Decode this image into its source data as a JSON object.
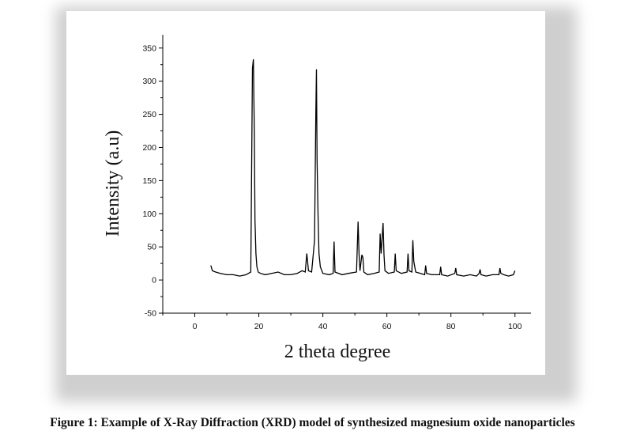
{
  "chart_data": {
    "type": "line",
    "title": "",
    "xlabel": "2 theta degree",
    "ylabel": "Intensity (a.u)",
    "xlim": [
      -10,
      105
    ],
    "ylim": [
      -50,
      370
    ],
    "x_ticks": [
      0,
      20,
      40,
      60,
      80,
      100
    ],
    "y_ticks": [
      -50,
      0,
      50,
      100,
      150,
      200,
      250,
      300,
      350
    ],
    "grid": false,
    "line_color": "#000000",
    "series": [
      {
        "x": [
          5,
          5.5,
          6.5,
          8,
          10,
          12,
          14,
          16,
          17.5,
          18.0,
          18.3,
          18.6,
          18.8,
          19.1,
          19.4,
          19.8,
          20.5,
          22,
          24,
          26,
          28,
          30,
          32,
          33.5,
          34.5,
          35.0,
          35.5,
          36.5,
          37.4,
          37.8,
          38.0,
          38.2,
          38.5,
          38.8,
          39.2,
          40,
          42,
          43.2,
          43.5,
          43.8,
          46,
          48,
          50.5,
          51.0,
          51.3,
          51.6,
          52.2,
          52.5,
          52.8,
          54,
          56,
          57.6,
          57.9,
          58.2,
          58.8,
          59.1,
          59.4,
          60.5,
          62.3,
          62.6,
          62.9,
          64.5,
          66.3,
          66.6,
          66.9,
          67.8,
          68.1,
          68.4,
          69.0,
          70.5,
          71.8,
          72.1,
          72.4,
          74,
          76.5,
          76.8,
          77.1,
          79,
          81.2,
          81.5,
          81.8,
          84,
          86,
          88,
          88.8,
          89.1,
          89.4,
          91,
          93,
          95,
          95.3,
          95.6,
          96.5,
          98,
          99.5,
          100
        ],
        "y": [
          22,
          14,
          12,
          10,
          8,
          8,
          6,
          8,
          12,
          320,
          333,
          220,
          90,
          40,
          20,
          12,
          10,
          8,
          10,
          12,
          8,
          8,
          10,
          14,
          12,
          40,
          14,
          12,
          60,
          250,
          318,
          180,
          100,
          40,
          20,
          10,
          8,
          10,
          58,
          12,
          8,
          10,
          12,
          88,
          40,
          14,
          38,
          34,
          12,
          8,
          10,
          12,
          70,
          40,
          86,
          38,
          14,
          10,
          12,
          40,
          14,
          10,
          12,
          40,
          14,
          12,
          60,
          28,
          12,
          10,
          8,
          22,
          10,
          8,
          8,
          20,
          8,
          6,
          10,
          18,
          8,
          6,
          8,
          6,
          10,
          16,
          8,
          6,
          8,
          8,
          18,
          10,
          8,
          6,
          8,
          14
        ]
      }
    ]
  },
  "caption": "Figure 1: Example of X-Ray Diffraction (XRD) model of synthesized magnesium oxide nanoparticles"
}
